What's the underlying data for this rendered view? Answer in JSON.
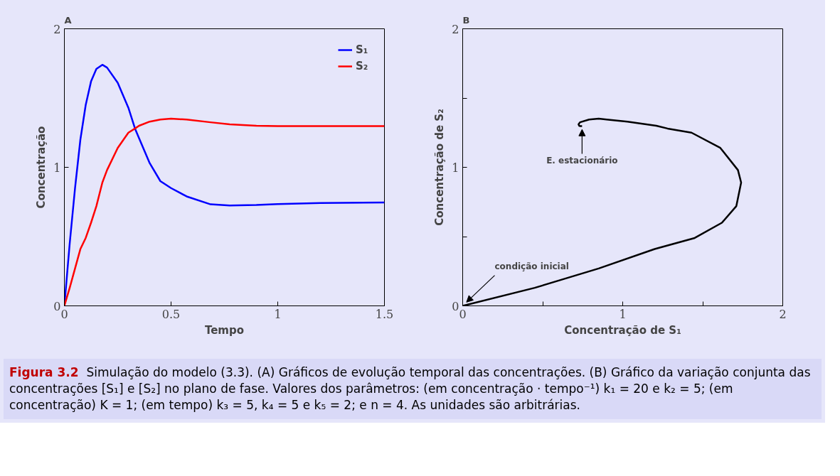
{
  "chart_data": [
    {
      "type": "line",
      "title": "A",
      "xlabel": "Tempo",
      "ylabel": "Concentração",
      "xlim": [
        0,
        1.5
      ],
      "ylim": [
        0,
        2
      ],
      "xticks": [
        0,
        0.5,
        1,
        1.5
      ],
      "yticks": [
        0,
        1,
        2
      ],
      "grid": false,
      "legend": "top right",
      "x": [
        0,
        0.025,
        0.05,
        0.075,
        0.1,
        0.125,
        0.15,
        0.178,
        0.2,
        0.25,
        0.3,
        0.331,
        0.35,
        0.4,
        0.45,
        0.5,
        0.573,
        0.685,
        0.775,
        0.9,
        1.0,
        1.2,
        1.5
      ],
      "series": [
        {
          "name": "S₁",
          "color": "#0000ff",
          "values": [
            0,
            0.45,
            0.85,
            1.2,
            1.45,
            1.62,
            1.71,
            1.74,
            1.72,
            1.61,
            1.43,
            1.28,
            1.21,
            1.03,
            0.9,
            0.85,
            0.79,
            0.733,
            0.724,
            0.728,
            0.735,
            0.742,
            0.746
          ]
        },
        {
          "name": "S₂",
          "color": "#ff0000",
          "values": [
            0,
            0.13,
            0.27,
            0.41,
            0.49,
            0.6,
            0.72,
            0.89,
            0.98,
            1.14,
            1.25,
            1.28,
            1.3,
            1.33,
            1.345,
            1.351,
            1.345,
            1.325,
            1.31,
            1.3,
            1.297,
            1.297,
            1.297
          ]
        }
      ]
    },
    {
      "type": "line",
      "title": "B",
      "xlabel": "Concentração de S₁",
      "ylabel": "Concentração de S₂",
      "xlim": [
        0,
        2
      ],
      "ylim": [
        0,
        2
      ],
      "xticks": [
        0,
        {
          "value": 0.5,
          "label": null
        },
        1,
        {
          "value": 1.5,
          "label": null
        },
        2
      ],
      "yticks": [
        0,
        {
          "value": 0.5,
          "label": null
        },
        1,
        {
          "value": 1.5,
          "label": null
        },
        2
      ],
      "grid": false,
      "x": [
        0,
        0.45,
        0.85,
        1.2,
        1.45,
        1.62,
        1.71,
        1.74,
        1.72,
        1.61,
        1.43,
        1.28,
        1.21,
        1.03,
        0.9,
        0.85,
        0.79,
        0.733,
        0.724,
        0.728,
        0.735,
        0.742,
        0.746
      ],
      "series": [
        {
          "color": "#000000",
          "values": [
            0,
            0.13,
            0.27,
            0.41,
            0.49,
            0.6,
            0.72,
            0.89,
            0.98,
            1.14,
            1.25,
            1.28,
            1.3,
            1.33,
            1.345,
            1.351,
            1.345,
            1.325,
            1.31,
            1.3,
            1.297,
            1.297,
            1.297
          ]
        }
      ],
      "annotations": [
        {
          "text": "E. estacionário",
          "x": 0.746,
          "y": 1.297
        },
        {
          "text": "condição inicial",
          "x": 0,
          "y": 0
        }
      ]
    },
    {
      "type": "other",
      "annotations": [
        "Figura 3.2",
        "Simulação do modelo (3.3). (A) Gráficos de evolução temporal das concentrações. (B) Gráfico da variação conjunta das concentrações [S₁] e [S₂] no plano de fase. Valores dos parâmetros: (em concentração · tempo⁻¹) k₁ = 20 e k₂ = 5; (em concentração) K = 1; (em tempo) k₃ = 5, k₄ = 5 e k₅ = 2; e n = 4. As unidades são arbitrárias."
      ]
    }
  ]
}
